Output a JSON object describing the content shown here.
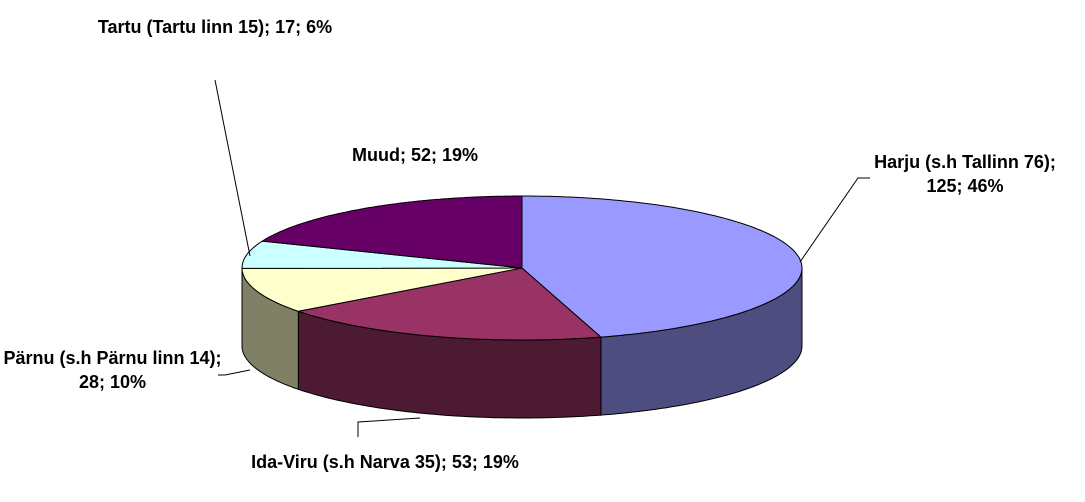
{
  "chart_data": {
    "type": "pie3d",
    "categories": [
      "Harju",
      "Ida-Viru",
      "Pärnu",
      "Tartu",
      "Muud"
    ],
    "values": [
      125,
      53,
      28,
      17,
      52
    ],
    "value_labels": [
      "Harju (s.h Tallinn 76); 125; 46%",
      "Ida-Viru (s.h Narva 35); 53; 19%",
      "Pärnu (s.h Pärnu linn 14); 28; 10%",
      "Tartu (Tartu linn 15); 17; 6%",
      "Muud; 52; 19%"
    ],
    "colors": [
      "#9999ff",
      "#993366",
      "#ffffcc",
      "#ccffff",
      "#660066"
    ]
  }
}
